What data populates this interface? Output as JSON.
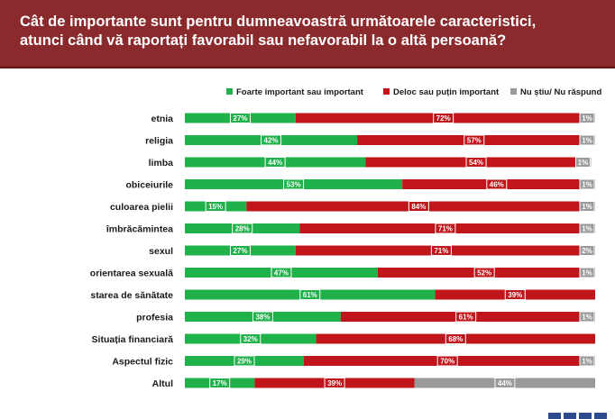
{
  "header": {
    "title_line1": "Cât de importante sunt pentru dumneavoastră următoarele caracteristici,",
    "title_line2": "atunci când vă raportați favorabil sau nefavorabil la o altă persoană?"
  },
  "colors": {
    "header_bg": "#8b2a2c",
    "important": "#1fb14a",
    "not_important": "#c0151b",
    "no_answer": "#9a9a9a"
  },
  "chart_data": {
    "type": "bar",
    "orientation": "horizontal",
    "stacked": true,
    "legend_position": "top",
    "xlim": [
      0,
      100
    ],
    "grid": false,
    "categories": [
      "etnia",
      "religia",
      "limba",
      "obiceiurile",
      "culoarea pielii",
      "îmbrăcămintea",
      "sexul",
      "orientarea sexuală",
      "starea de sănătate",
      "profesia",
      "Situația financiară",
      "Aspectul fizic",
      "Altul"
    ],
    "series": [
      {
        "name": "Foarte important sau important",
        "color": "#1fb14a",
        "values": [
          27,
          42,
          44,
          53,
          15,
          28,
          27,
          47,
          61,
          38,
          32,
          29,
          17
        ]
      },
      {
        "name": "Deloc sau puțin important",
        "color": "#c0151b",
        "values": [
          72,
          57,
          54,
          46,
          84,
          71,
          71,
          52,
          39,
          61,
          68,
          70,
          39
        ]
      },
      {
        "name": "Nu știu/ Nu răspund",
        "color": "#9a9a9a",
        "values": [
          1,
          1,
          1,
          1,
          1,
          1,
          2,
          1,
          null,
          1,
          null,
          1,
          44
        ]
      }
    ],
    "data_labels": [
      [
        "27%",
        "72%",
        "1%"
      ],
      [
        "42%",
        "57%",
        "1%"
      ],
      [
        "44%",
        "54%",
        "1%"
      ],
      [
        "53%",
        "46%",
        "1%"
      ],
      [
        "15%",
        "84%",
        "1%"
      ],
      [
        "28%",
        "71%",
        "1%"
      ],
      [
        "27%",
        "71%",
        "2%"
      ],
      [
        "47%",
        "52%",
        "1%"
      ],
      [
        "61%",
        "39%",
        null
      ],
      [
        "38%",
        "61%",
        "1%"
      ],
      [
        "32%",
        "68%",
        null
      ],
      [
        "29%",
        "70%",
        "1%"
      ],
      [
        "17%",
        "39%",
        "44%"
      ]
    ]
  }
}
